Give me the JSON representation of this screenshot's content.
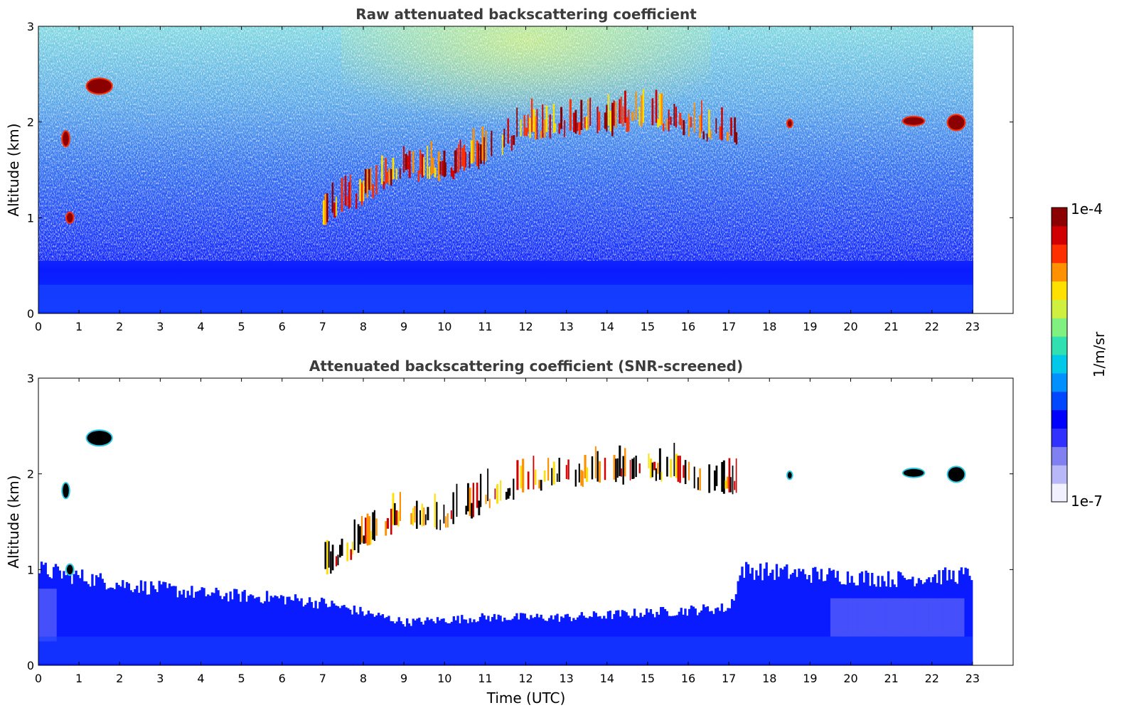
{
  "chart_data": [
    {
      "type": "heatmap",
      "title": "Raw attenuated backscattering coefficient",
      "xlabel": "",
      "ylabel": "Altitude (km)",
      "xlim": [
        0,
        24
      ],
      "ylim": [
        0,
        3
      ],
      "x_ticks": [
        "0",
        "1",
        "2",
        "3",
        "4",
        "5",
        "6",
        "7",
        "8",
        "9",
        "10",
        "11",
        "12",
        "13",
        "14",
        "15",
        "16",
        "17",
        "18",
        "19",
        "20",
        "21",
        "22",
        "23"
      ],
      "y_ticks": [
        "0",
        "1",
        "2",
        "3"
      ],
      "data_extent_x": [
        0,
        23
      ],
      "color_scale": "log",
      "features": [
        {
          "name": "boundary layer",
          "time": [
            0,
            23
          ],
          "altitude_km": [
            0,
            0.5
          ]
        },
        {
          "name": "rising cloud layer",
          "points": [
            [
              7,
              0.95
            ],
            [
              8,
              1.2
            ],
            [
              9,
              1.45
            ],
            [
              10,
              1.4
            ],
            [
              11,
              1.6
            ],
            [
              12,
              1.85
            ],
            [
              13,
              1.9
            ],
            [
              14,
              1.9
            ],
            [
              15,
              2.0
            ],
            [
              16,
              1.9
            ],
            [
              17,
              1.8
            ]
          ]
        },
        {
          "name": "cloud",
          "time": [
            1.2,
            1.8
          ],
          "altitude_km": [
            2.3,
            2.45
          ]
        },
        {
          "name": "cloud",
          "time": [
            0.6,
            0.75
          ],
          "altitude_km": [
            1.75,
            1.9
          ]
        },
        {
          "name": "cloud",
          "time": [
            0.7,
            0.85
          ],
          "altitude_km": [
            0.95,
            1.05
          ]
        },
        {
          "name": "cloud",
          "time": [
            18.45,
            18.55
          ],
          "altitude_km": [
            1.95,
            2.02
          ]
        },
        {
          "name": "cloud",
          "time": [
            21.3,
            21.8
          ],
          "altitude_km": [
            1.97,
            2.05
          ]
        },
        {
          "name": "cloud",
          "time": [
            22.4,
            22.8
          ],
          "altitude_km": [
            1.92,
            2.07
          ]
        }
      ]
    },
    {
      "type": "heatmap",
      "title": "Attenuated backscattering coefficient (SNR-screened)",
      "xlabel": "Time (UTC)",
      "ylabel": "Altitude (km)",
      "xlim": [
        0,
        24
      ],
      "ylim": [
        0,
        3
      ],
      "x_ticks": [
        "0",
        "1",
        "2",
        "3",
        "4",
        "5",
        "6",
        "7",
        "8",
        "9",
        "10",
        "11",
        "12",
        "13",
        "14",
        "15",
        "16",
        "17",
        "18",
        "19",
        "20",
        "21",
        "22",
        "23"
      ],
      "y_ticks": [
        "0",
        "1",
        "2",
        "3"
      ],
      "data_extent_x": [
        0,
        23
      ],
      "color_scale": "log",
      "features": [
        {
          "name": "boundary layer top",
          "points": [
            [
              0,
              1.0
            ],
            [
              2,
              0.85
            ],
            [
              4,
              0.75
            ],
            [
              6,
              0.7
            ],
            [
              7,
              0.65
            ],
            [
              8,
              0.55
            ],
            [
              9,
              0.45
            ],
            [
              11,
              0.5
            ],
            [
              13,
              0.5
            ],
            [
              15,
              0.55
            ],
            [
              17,
              0.6
            ],
            [
              17.3,
              1.0
            ],
            [
              19,
              0.95
            ],
            [
              21,
              0.9
            ],
            [
              23,
              0.95
            ]
          ]
        },
        {
          "name": "rising cloud layer",
          "points": [
            [
              7,
              0.95
            ],
            [
              8,
              1.25
            ],
            [
              9,
              1.5
            ],
            [
              10,
              1.45
            ],
            [
              11,
              1.65
            ],
            [
              12,
              1.85
            ],
            [
              13,
              1.9
            ],
            [
              14,
              1.9
            ],
            [
              15,
              2.0
            ],
            [
              16,
              1.9
            ],
            [
              17,
              1.8
            ]
          ]
        },
        {
          "name": "cloud",
          "time": [
            1.2,
            1.8
          ],
          "altitude_km": [
            2.3,
            2.45
          ]
        },
        {
          "name": "cloud",
          "time": [
            0.6,
            0.75
          ],
          "altitude_km": [
            1.75,
            1.9
          ]
        },
        {
          "name": "cloud",
          "time": [
            0.7,
            0.85
          ],
          "altitude_km": [
            0.95,
            1.05
          ]
        },
        {
          "name": "cloud",
          "time": [
            18.45,
            18.55
          ],
          "altitude_km": [
            1.95,
            2.02
          ]
        },
        {
          "name": "cloud",
          "time": [
            21.3,
            21.8
          ],
          "altitude_km": [
            1.97,
            2.05
          ]
        },
        {
          "name": "cloud",
          "time": [
            22.4,
            22.8
          ],
          "altitude_km": [
            1.92,
            2.07
          ]
        }
      ]
    }
  ],
  "colorbar": {
    "label": "1/m/sr",
    "min_label": "1e-7",
    "max_label": "1e-4",
    "colors": [
      "#f0f0ff",
      "#b8b8f8",
      "#8080f0",
      "#3030ff",
      "#0000ff",
      "#0048ff",
      "#0090ff",
      "#00c8e8",
      "#30e0b0",
      "#80f080",
      "#d0f040",
      "#ffe000",
      "#ff9000",
      "#ff3000",
      "#d00000",
      "#8b0000"
    ]
  }
}
